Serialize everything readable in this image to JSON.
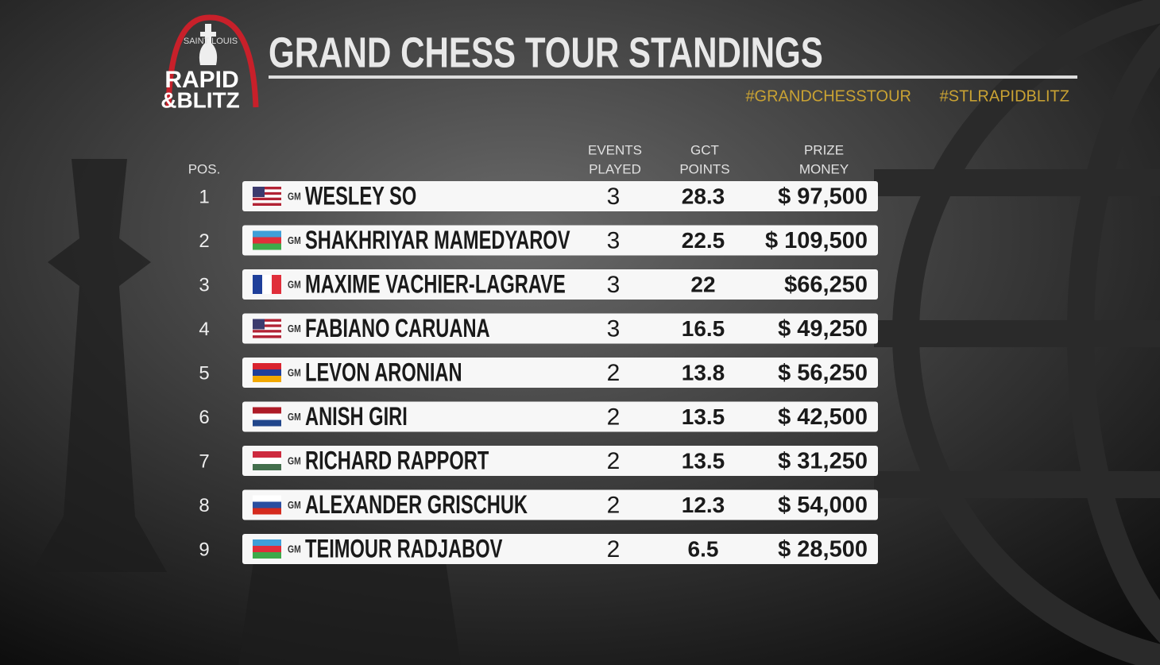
{
  "logo": {
    "arc": "SAINT LOUIS",
    "line1": "RAPID",
    "line2": "&BLITZ"
  },
  "header": {
    "title": "GRAND CHESS TOUR STANDINGS",
    "hashtags": [
      "#GRANDCHESSTOUR",
      "#STLRAPIDBLITZ"
    ]
  },
  "table": {
    "columns": {
      "pos": [
        "POS."
      ],
      "events": [
        "EVENTS",
        "PLAYED"
      ],
      "points": [
        "GCT",
        "POINTS"
      ],
      "prize": [
        "PRIZE",
        "MONEY"
      ]
    },
    "rows": [
      {
        "pos": 1,
        "title": "GM",
        "name": "WESLEY SO",
        "events": 3,
        "points": 28.3,
        "prize": "$ 97,500"
      },
      {
        "pos": 2,
        "title": "GM",
        "name": "SHAKHRIYAR MAMEDYAROV",
        "events": 3,
        "points": 22.5,
        "prize": "$ 109,500"
      },
      {
        "pos": 3,
        "title": "GM",
        "name": "MAXIME VACHIER-LAGRAVE",
        "events": 3,
        "points": 22,
        "prize": "$66,250"
      },
      {
        "pos": 4,
        "title": "GM",
        "name": "FABIANO CARUANA",
        "events": 3,
        "points": 16.5,
        "prize": "$ 49,250"
      },
      {
        "pos": 5,
        "title": "GM",
        "name": "LEVON ARONIAN",
        "events": 2,
        "points": 13.8,
        "prize": "$ 56,250"
      },
      {
        "pos": 6,
        "title": "GM",
        "name": "ANISH GIRI",
        "events": 2,
        "points": 13.5,
        "prize": "$ 42,500"
      },
      {
        "pos": 7,
        "title": "GM",
        "name": "RICHARD RAPPORT",
        "events": 2,
        "points": 13.5,
        "prize": "$ 31,250"
      },
      {
        "pos": 8,
        "title": "GM",
        "name": "ALEXANDER GRISCHUK",
        "events": 2,
        "points": 12.3,
        "prize": "$ 54,000"
      },
      {
        "pos": 9,
        "title": "GM",
        "name": "TEIMOUR RADJABOV",
        "events": 2,
        "points": 6.5,
        "prize": "$ 28,500"
      }
    ]
  }
}
